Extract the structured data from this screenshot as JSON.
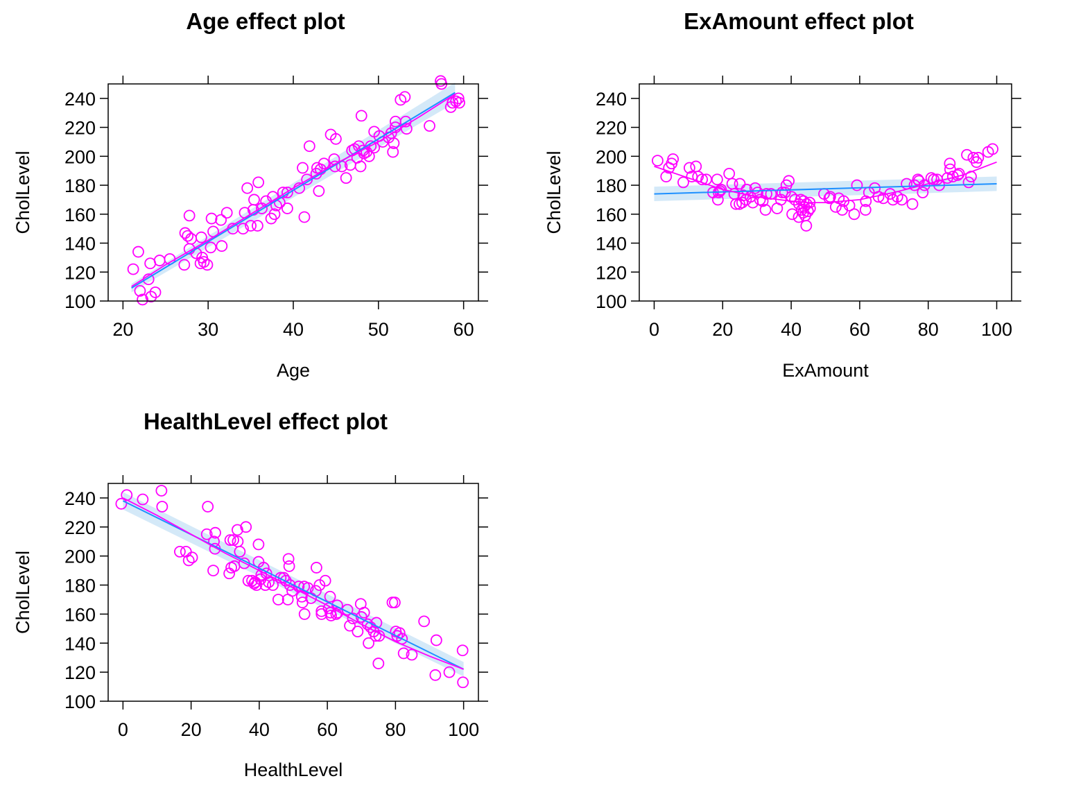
{
  "colors": {
    "points": "#ff00ff",
    "smooth": "#ff00ff",
    "fit": "#1e90ff",
    "band": "#c6e2f5",
    "axis": "#000000"
  },
  "chart_data": [
    {
      "type": "scatter",
      "title": "Age effect plot",
      "xlabel": "Age",
      "ylabel": "CholLevel",
      "xlim": [
        20,
        60
      ],
      "ylim": [
        100,
        250
      ],
      "xticks": [
        20,
        30,
        40,
        50,
        60
      ],
      "yticks": [
        100,
        120,
        140,
        160,
        180,
        200,
        220,
        240
      ],
      "fit": {
        "x": [
          21,
          59
        ],
        "y": [
          109,
          244
        ],
        "band_halfwidth": [
          3,
          7
        ]
      },
      "smooth": {
        "x": [
          21,
          25,
          30,
          35,
          40,
          45,
          50,
          55,
          59
        ],
        "y": [
          110,
          125,
          142,
          160,
          178,
          195,
          210,
          228,
          243
        ]
      },
      "points": [
        [
          21.2,
          122
        ],
        [
          21.8,
          134
        ],
        [
          22.0,
          107
        ],
        [
          22.3,
          101
        ],
        [
          23.0,
          115
        ],
        [
          23.2,
          126
        ],
        [
          23.3,
          103
        ],
        [
          23.8,
          106
        ],
        [
          24.3,
          128
        ],
        [
          25.5,
          129
        ],
        [
          27.2,
          125
        ],
        [
          27.3,
          147
        ],
        [
          27.6,
          145
        ],
        [
          27.8,
          136
        ],
        [
          27.8,
          159
        ],
        [
          28.0,
          143
        ],
        [
          28.6,
          133
        ],
        [
          29.1,
          126
        ],
        [
          29.2,
          144
        ],
        [
          29.3,
          130
        ],
        [
          29.5,
          127
        ],
        [
          29.9,
          125
        ],
        [
          30.3,
          137
        ],
        [
          30.4,
          157
        ],
        [
          30.6,
          148
        ],
        [
          31.5,
          156
        ],
        [
          31.6,
          138
        ],
        [
          32.2,
          161
        ],
        [
          32.9,
          150
        ],
        [
          34.1,
          150
        ],
        [
          34.3,
          161
        ],
        [
          34.6,
          178
        ],
        [
          35.0,
          152
        ],
        [
          35.3,
          163
        ],
        [
          35.4,
          170
        ],
        [
          35.8,
          152
        ],
        [
          35.9,
          182
        ],
        [
          36.3,
          164
        ],
        [
          36.8,
          169
        ],
        [
          37.4,
          157
        ],
        [
          37.6,
          172
        ],
        [
          37.8,
          160
        ],
        [
          38.0,
          166
        ],
        [
          38.4,
          168
        ],
        [
          38.8,
          175
        ],
        [
          39.3,
          164
        ],
        [
          39.3,
          175
        ],
        [
          40.7,
          178
        ],
        [
          41.1,
          192
        ],
        [
          41.3,
          158
        ],
        [
          41.6,
          184
        ],
        [
          41.9,
          207
        ],
        [
          42.7,
          188
        ],
        [
          42.8,
          192
        ],
        [
          43.0,
          176
        ],
        [
          43.2,
          191
        ],
        [
          43.6,
          195
        ],
        [
          44.4,
          215
        ],
        [
          44.8,
          198
        ],
        [
          44.9,
          193
        ],
        [
          45.0,
          212
        ],
        [
          45.7,
          193
        ],
        [
          46.2,
          185
        ],
        [
          46.7,
          194
        ],
        [
          46.9,
          204
        ],
        [
          47.2,
          205
        ],
        [
          47.5,
          199
        ],
        [
          47.7,
          207
        ],
        [
          47.9,
          193
        ],
        [
          48.0,
          228
        ],
        [
          48.2,
          204
        ],
        [
          48.3,
          202
        ],
        [
          48.6,
          203
        ],
        [
          48.9,
          200
        ],
        [
          49.1,
          207
        ],
        [
          49.5,
          206
        ],
        [
          49.5,
          217
        ],
        [
          50.1,
          214
        ],
        [
          50.5,
          210
        ],
        [
          51.2,
          213
        ],
        [
          51.5,
          216
        ],
        [
          51.7,
          203
        ],
        [
          51.8,
          209
        ],
        [
          52.0,
          220
        ],
        [
          52.0,
          224
        ],
        [
          52.6,
          239
        ],
        [
          53.1,
          241
        ],
        [
          53.2,
          224
        ],
        [
          53.3,
          219
        ],
        [
          56.0,
          221
        ],
        [
          57.3,
          252
        ],
        [
          57.4,
          250
        ],
        [
          58.5,
          234
        ],
        [
          58.7,
          237
        ],
        [
          59.1,
          238
        ],
        [
          59.4,
          240
        ],
        [
          59.5,
          237
        ]
      ]
    },
    {
      "type": "scatter",
      "title": "ExAmount effect plot",
      "xlabel": "ExAmount",
      "ylabel": "CholLevel",
      "xlim": [
        0,
        100
      ],
      "ylim": [
        100,
        250
      ],
      "xticks": [
        0,
        20,
        40,
        60,
        80,
        100
      ],
      "yticks": [
        100,
        120,
        140,
        160,
        180,
        200,
        220,
        240
      ],
      "fit": {
        "x": [
          0,
          100
        ],
        "y": [
          174,
          181
        ],
        "band_halfwidth": [
          5,
          5
        ]
      },
      "smooth": {
        "x": [
          0,
          10,
          20,
          30,
          40,
          45,
          50,
          60,
          70,
          80,
          90,
          100
        ],
        "y": [
          193,
          185,
          177,
          172,
          169,
          168,
          168,
          170,
          175,
          181,
          187,
          196
        ]
      },
      "points": [
        [
          1,
          197
        ],
        [
          3.5,
          186
        ],
        [
          4.3,
          192
        ],
        [
          5.1,
          195
        ],
        [
          5.5,
          198
        ],
        [
          8.5,
          182
        ],
        [
          10.3,
          192
        ],
        [
          11.0,
          186
        ],
        [
          12.2,
          193
        ],
        [
          12.8,
          186
        ],
        [
          14.0,
          184
        ],
        [
          15.2,
          184
        ],
        [
          17.2,
          175
        ],
        [
          18.4,
          184
        ],
        [
          18.6,
          170
        ],
        [
          18.8,
          175
        ],
        [
          19.2,
          176
        ],
        [
          19.5,
          177
        ],
        [
          21.9,
          188
        ],
        [
          22.8,
          181
        ],
        [
          23.4,
          174
        ],
        [
          23.9,
          167
        ],
        [
          24.9,
          167
        ],
        [
          25.0,
          181
        ],
        [
          25.7,
          168
        ],
        [
          26.0,
          173
        ],
        [
          26.8,
          170
        ],
        [
          27.0,
          177
        ],
        [
          28.1,
          172
        ],
        [
          28.8,
          168
        ],
        [
          29.5,
          178
        ],
        [
          30.2,
          175
        ],
        [
          30.9,
          170
        ],
        [
          31.7,
          169
        ],
        [
          32.5,
          163
        ],
        [
          32.8,
          174
        ],
        [
          34.1,
          174
        ],
        [
          35.9,
          164
        ],
        [
          37.0,
          170
        ],
        [
          37.4,
          175
        ],
        [
          38.2,
          175
        ],
        [
          38.6,
          180
        ],
        [
          39.3,
          183
        ],
        [
          40.1,
          172
        ],
        [
          40.3,
          160
        ],
        [
          41.1,
          170
        ],
        [
          42.2,
          158
        ],
        [
          42.3,
          167
        ],
        [
          42.8,
          170
        ],
        [
          43.1,
          163
        ],
        [
          43.5,
          161
        ],
        [
          43.6,
          169
        ],
        [
          43.8,
          165
        ],
        [
          44.1,
          159
        ],
        [
          44.4,
          152
        ],
        [
          44.5,
          167
        ],
        [
          44.9,
          162
        ],
        [
          45.4,
          168
        ],
        [
          45.5,
          164
        ],
        [
          49.6,
          174
        ],
        [
          51.1,
          171
        ],
        [
          51.4,
          172
        ],
        [
          53.0,
          165
        ],
        [
          53.9,
          171
        ],
        [
          54.9,
          163
        ],
        [
          55.3,
          169
        ],
        [
          57.0,
          166
        ],
        [
          58.4,
          160
        ],
        [
          59.2,
          180
        ],
        [
          61.7,
          163
        ],
        [
          61.8,
          169
        ],
        [
          62.7,
          175
        ],
        [
          64.4,
          178
        ],
        [
          65.5,
          172
        ],
        [
          66.9,
          171
        ],
        [
          68.9,
          174
        ],
        [
          69.7,
          170
        ],
        [
          71.0,
          172
        ],
        [
          72.3,
          170
        ],
        [
          73.7,
          181
        ],
        [
          75.4,
          167
        ],
        [
          76.0,
          180
        ],
        [
          77.0,
          184
        ],
        [
          77.3,
          183
        ],
        [
          78.4,
          175
        ],
        [
          78.9,
          180
        ],
        [
          80.9,
          185
        ],
        [
          81.6,
          184
        ],
        [
          82.6,
          184
        ],
        [
          83.2,
          180
        ],
        [
          85.6,
          185
        ],
        [
          86.3,
          195
        ],
        [
          86.4,
          191
        ],
        [
          87.2,
          186
        ],
        [
          88.6,
          187
        ],
        [
          89.0,
          188
        ],
        [
          91.3,
          201
        ],
        [
          91.8,
          182
        ],
        [
          92.5,
          186
        ],
        [
          93.2,
          199
        ],
        [
          94.1,
          196
        ],
        [
          94.6,
          199
        ],
        [
          97.5,
          203
        ],
        [
          98.8,
          205
        ]
      ]
    },
    {
      "type": "scatter",
      "title": "HealthLevel effect plot",
      "xlabel": "HealthLevel",
      "ylabel": "CholLevel",
      "xlim": [
        0,
        100
      ],
      "ylim": [
        100,
        250
      ],
      "xticks": [
        0,
        20,
        40,
        60,
        80,
        100
      ],
      "yticks": [
        100,
        120,
        140,
        160,
        180,
        200,
        220,
        240
      ],
      "fit": {
        "x": [
          0,
          100
        ],
        "y": [
          238,
          122
        ],
        "band_halfwidth": [
          6,
          5
        ]
      },
      "smooth": {
        "x": [
          0,
          10,
          20,
          30,
          40,
          50,
          60,
          70,
          80,
          90,
          100
        ],
        "y": [
          240,
          228,
          215,
          202,
          190,
          178,
          166,
          153,
          141,
          131,
          122
        ]
      },
      "points": [
        [
          -0.5,
          236
        ],
        [
          1.1,
          242
        ],
        [
          5.8,
          239
        ],
        [
          11.3,
          245
        ],
        [
          11.5,
          234
        ],
        [
          16.7,
          203
        ],
        [
          18.5,
          203
        ],
        [
          19.3,
          197
        ],
        [
          20.3,
          199
        ],
        [
          24.6,
          215
        ],
        [
          24.9,
          234
        ],
        [
          26.5,
          190
        ],
        [
          26.7,
          210
        ],
        [
          27.0,
          205
        ],
        [
          27.1,
          216
        ],
        [
          31.2,
          188
        ],
        [
          31.5,
          211
        ],
        [
          31.8,
          192
        ],
        [
          32.4,
          211
        ],
        [
          32.7,
          193
        ],
        [
          33.6,
          218
        ],
        [
          33.7,
          210
        ],
        [
          34.3,
          203
        ],
        [
          35.6,
          195
        ],
        [
          36.1,
          220
        ],
        [
          36.8,
          183
        ],
        [
          37.9,
          183
        ],
        [
          38.5,
          181
        ],
        [
          38.8,
          182
        ],
        [
          39.2,
          180
        ],
        [
          39.8,
          208
        ],
        [
          39.8,
          196
        ],
        [
          40.4,
          184
        ],
        [
          40.6,
          187
        ],
        [
          41.3,
          192
        ],
        [
          41.8,
          180
        ],
        [
          42.1,
          188
        ],
        [
          42.8,
          182
        ],
        [
          44.0,
          180
        ],
        [
          45.6,
          170
        ],
        [
          46.3,
          185
        ],
        [
          47.2,
          185
        ],
        [
          47.8,
          183
        ],
        [
          48.4,
          170
        ],
        [
          48.6,
          198
        ],
        [
          48.8,
          193
        ],
        [
          49.0,
          180
        ],
        [
          49.7,
          176
        ],
        [
          51.6,
          179
        ],
        [
          52.5,
          172
        ],
        [
          52.7,
          168
        ],
        [
          53.2,
          179
        ],
        [
          53.3,
          160
        ],
        [
          54.3,
          178
        ],
        [
          55.2,
          171
        ],
        [
          56.6,
          176
        ],
        [
          56.8,
          192
        ],
        [
          57.7,
          180
        ],
        [
          58.3,
          160
        ],
        [
          58.3,
          162
        ],
        [
          59.4,
          183
        ],
        [
          60.4,
          164
        ],
        [
          60.8,
          172
        ],
        [
          60.9,
          161
        ],
        [
          61.1,
          159
        ],
        [
          62.6,
          160
        ],
        [
          62.9,
          166
        ],
        [
          63.0,
          161
        ],
        [
          65.9,
          163
        ],
        [
          66.6,
          152
        ],
        [
          67.5,
          157
        ],
        [
          68.9,
          148
        ],
        [
          69.8,
          167
        ],
        [
          70.0,
          158
        ],
        [
          70.8,
          161
        ],
        [
          71.8,
          153
        ],
        [
          72.1,
          140
        ],
        [
          72.7,
          151
        ],
        [
          73.6,
          148
        ],
        [
          74.2,
          145
        ],
        [
          74.4,
          154
        ],
        [
          75.0,
          126
        ],
        [
          75.2,
          145
        ],
        [
          79.1,
          168
        ],
        [
          79.8,
          168
        ],
        [
          80.1,
          148
        ],
        [
          80.5,
          145
        ],
        [
          81.2,
          147
        ],
        [
          81.9,
          143
        ],
        [
          82.4,
          133
        ],
        [
          84.8,
          132
        ],
        [
          88.4,
          155
        ],
        [
          91.7,
          118
        ],
        [
          92.0,
          142
        ],
        [
          95.8,
          120
        ],
        [
          99.7,
          135
        ],
        [
          99.8,
          113
        ]
      ]
    }
  ]
}
